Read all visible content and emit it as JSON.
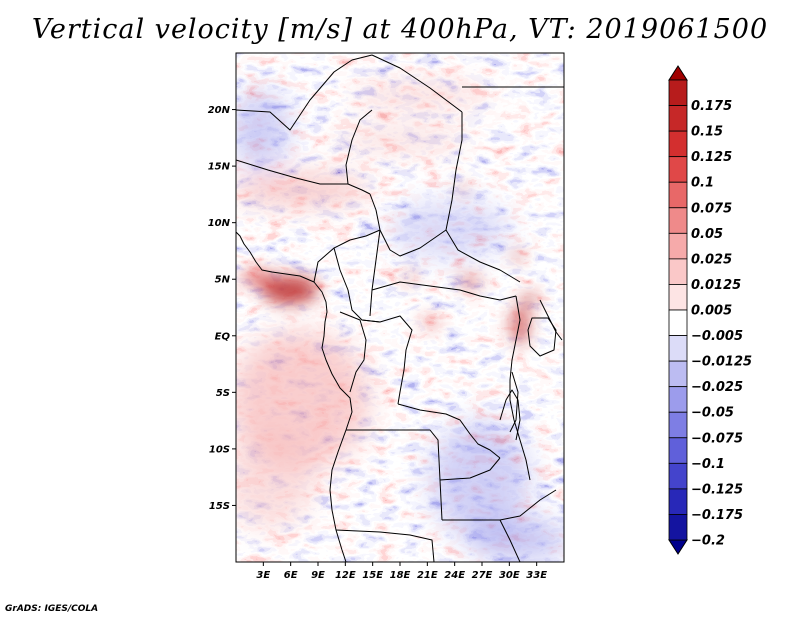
{
  "title": "Vertical velocity [m/s] at 400hPa, VT: 2019061500",
  "credit": "GrADS: IGES/COLA",
  "map": {
    "lon_range": [
      0,
      36
    ],
    "lat_range": [
      -20,
      25
    ],
    "lat_ticks": [
      {
        "value": 20,
        "label": "20N"
      },
      {
        "value": 15,
        "label": "15N"
      },
      {
        "value": 10,
        "label": "10N"
      },
      {
        "value": 5,
        "label": "5N"
      },
      {
        "value": 0,
        "label": "EQ"
      },
      {
        "value": -5,
        "label": "5S"
      },
      {
        "value": -10,
        "label": "10S"
      },
      {
        "value": -15,
        "label": "15S"
      }
    ],
    "lon_ticks": [
      {
        "value": 3,
        "label": "3E"
      },
      {
        "value": 6,
        "label": "6E"
      },
      {
        "value": 9,
        "label": "9E"
      },
      {
        "value": 12,
        "label": "12E"
      },
      {
        "value": 15,
        "label": "15E"
      },
      {
        "value": 18,
        "label": "18E"
      },
      {
        "value": 21,
        "label": "21E"
      },
      {
        "value": 24,
        "label": "24E"
      },
      {
        "value": 27,
        "label": "27E"
      },
      {
        "value": 30,
        "label": "30E"
      },
      {
        "value": 33,
        "label": "33E"
      }
    ]
  },
  "colorbar": {
    "levels": [
      {
        "label": "0.175",
        "color": "#b71c1c"
      },
      {
        "label": "0.15",
        "color": "#c62828"
      },
      {
        "label": "0.125",
        "color": "#d32f2f"
      },
      {
        "label": "0.1",
        "color": "#e04848"
      },
      {
        "label": "0.075",
        "color": "#e86868"
      },
      {
        "label": "0.05",
        "color": "#ef8a8a"
      },
      {
        "label": "0.025",
        "color": "#f6aaaa"
      },
      {
        "label": "0.0125",
        "color": "#fac8c8"
      },
      {
        "label": "0.005",
        "color": "#fde4e4"
      },
      {
        "label": "−0.005",
        "color": "#ffffff"
      },
      {
        "label": "−0.0125",
        "color": "#dcdcf8"
      },
      {
        "label": "−0.025",
        "color": "#bcbcf2"
      },
      {
        "label": "−0.05",
        "color": "#9c9cec"
      },
      {
        "label": "−0.075",
        "color": "#7e7ee4"
      },
      {
        "label": "−0.1",
        "color": "#6060da"
      },
      {
        "label": "−0.125",
        "color": "#4444cc"
      },
      {
        "label": "−0.175",
        "color": "#2828b8"
      },
      {
        "label": "−0.2",
        "color": "#1414a0"
      }
    ],
    "top_arrow_color": "#a00000",
    "bottom_arrow_color": "#00008c"
  }
}
